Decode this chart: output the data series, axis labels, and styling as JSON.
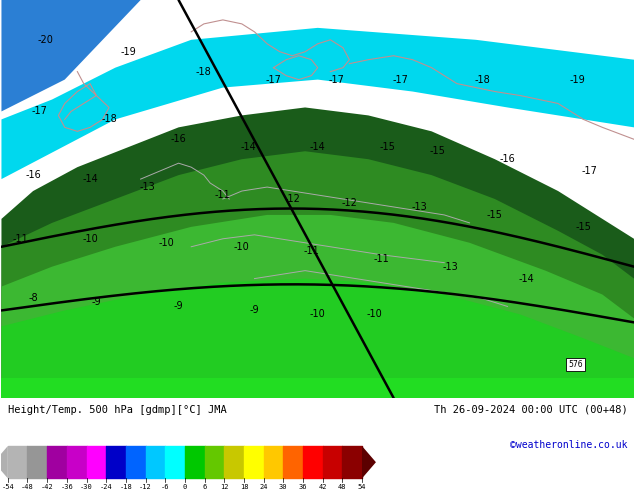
{
  "title_left": "Height/Temp. 500 hPa [gdmp][°C] JMA",
  "title_right": "Th 26-09-2024 00:00 UTC (00+48)",
  "credit": "©weatheronline.co.uk",
  "colorbar_values": [
    -54,
    -48,
    -42,
    -36,
    -30,
    -24,
    -18,
    -12,
    -6,
    0,
    6,
    12,
    18,
    24,
    30,
    36,
    42,
    48,
    54
  ],
  "colorbar_colors": [
    "#B4B4B4",
    "#969696",
    "#A000A0",
    "#C800C8",
    "#FF00FF",
    "#0000C8",
    "#0064FF",
    "#00C8FF",
    "#00FFFF",
    "#00C800",
    "#64C800",
    "#C8C800",
    "#FFFF00",
    "#FFC800",
    "#FF6400",
    "#FF0000",
    "#C80000",
    "#8B0000"
  ],
  "fig_width": 6.34,
  "fig_height": 4.9,
  "dpi": 100,
  "map_bg": "#00BFFF",
  "blue_dark": "#2B7FD4",
  "cyan_light": "#00E5FF",
  "green_dark": "#1A5C1A",
  "green_mid": "#2E8B22",
  "green_bright": "#3CB832",
  "green_lime": "#22CC22",
  "coast_color": "#C09090",
  "contour_color": "black"
}
